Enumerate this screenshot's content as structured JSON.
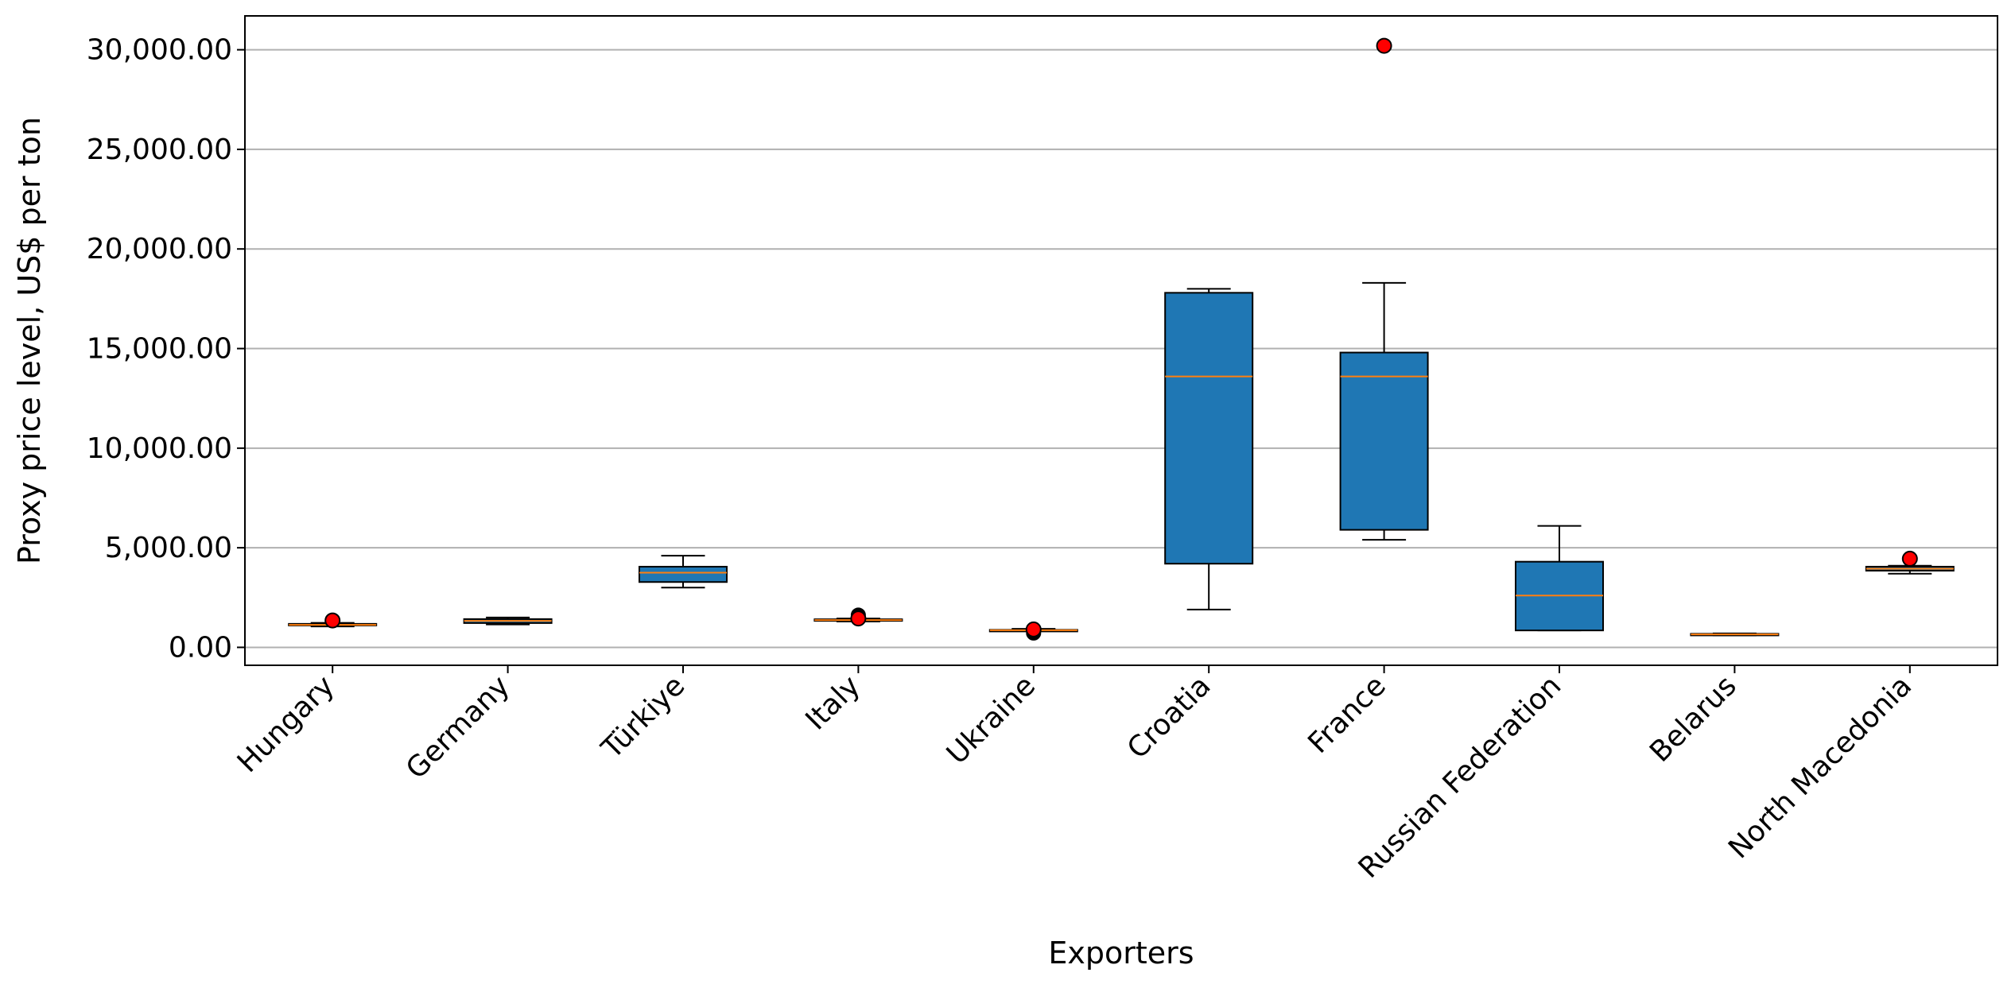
{
  "chart_data": {
    "type": "box",
    "title": "",
    "xlabel": "Exporters",
    "ylabel": "Proxy price level, US$ per ton",
    "ylim": [
      -900,
      31700
    ],
    "yticks": [
      0,
      5000,
      10000,
      15000,
      20000,
      25000,
      30000
    ],
    "ytick_labels": [
      "0.00",
      "5,000.00",
      "10,000.00",
      "15,000.00",
      "20,000.00",
      "25,000.00",
      "30,000.00"
    ],
    "grid": "horizontal",
    "colors": {
      "box_fill": "#1f77b4",
      "median": "#ff7f0e",
      "highlight_point": "#ff0000",
      "grid": "#b0b0b0"
    },
    "categories": [
      "Hungary",
      "Germany",
      "Türkiye",
      "Italy",
      "Ukraine",
      "Croatia",
      "France",
      "Russian Federation",
      "Belarus",
      "North Macedonia"
    ],
    "boxes": [
      {
        "category": "Hungary",
        "whisker_low": 1050,
        "q1": 1100,
        "median": 1130,
        "q3": 1180,
        "whisker_high": 1230,
        "outliers": [],
        "highlight": 1350
      },
      {
        "category": "Germany",
        "whisker_low": 1150,
        "q1": 1220,
        "median": 1330,
        "q3": 1420,
        "whisker_high": 1500,
        "outliers": [],
        "highlight": null
      },
      {
        "category": "Türkiye",
        "whisker_low": 3000,
        "q1": 3280,
        "median": 3750,
        "q3": 4050,
        "whisker_high": 4600,
        "outliers": [],
        "highlight": null
      },
      {
        "category": "Italy",
        "whisker_low": 1300,
        "q1": 1330,
        "median": 1370,
        "q3": 1410,
        "whisker_high": 1450,
        "outliers": [
          1620
        ],
        "highlight": 1450
      },
      {
        "category": "Ukraine",
        "whisker_low": 820,
        "q1": 840,
        "median": 860,
        "q3": 880,
        "whisker_high": 930,
        "outliers": [
          720
        ],
        "highlight": 900
      },
      {
        "category": "Croatia",
        "whisker_low": 1900,
        "q1": 4200,
        "median": 13600,
        "q3": 17800,
        "whisker_high": 18000,
        "outliers": [],
        "highlight": null
      },
      {
        "category": "France",
        "whisker_low": 5400,
        "q1": 5900,
        "median": 13600,
        "q3": 14800,
        "whisker_high": 18300,
        "outliers": [],
        "highlight": 30200
      },
      {
        "category": "Russian Federation",
        "whisker_low": 850,
        "q1": 850,
        "median": 2600,
        "q3": 4300,
        "whisker_high": 6100,
        "outliers": [],
        "highlight": null
      },
      {
        "category": "Belarus",
        "whisker_low": 600,
        "q1": 620,
        "median": 650,
        "q3": 680,
        "whisker_high": 700,
        "outliers": [],
        "highlight": null
      },
      {
        "category": "North Macedonia",
        "whisker_low": 3700,
        "q1": 3850,
        "median": 3950,
        "q3": 4050,
        "whisker_high": 4100,
        "outliers": [],
        "highlight": 4450
      }
    ]
  }
}
